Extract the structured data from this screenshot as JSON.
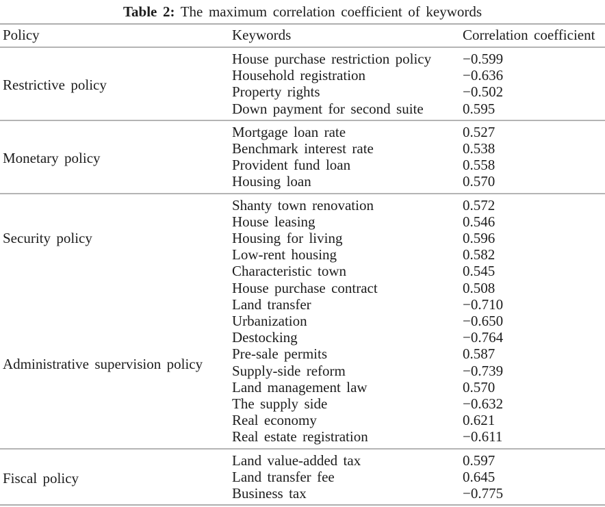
{
  "title": {
    "label": "Table 2:",
    "text": "The maximum correlation coefficient of keywords"
  },
  "columns": {
    "policy": "Policy",
    "keywords": "Keywords",
    "correlation": "Correlation coefficient"
  },
  "table": {
    "sections": [
      {
        "policy": "Restrictive policy",
        "rows": [
          {
            "keyword": "House purchase restriction policy",
            "value": "−0.599"
          },
          {
            "keyword": "Household registration",
            "value": "−0.636"
          },
          {
            "keyword": "Property rights",
            "value": "−0.502"
          },
          {
            "keyword": "Down payment for second suite",
            "value": "0.595"
          }
        ]
      },
      {
        "policy": "Monetary policy",
        "rows": [
          {
            "keyword": "Mortgage loan rate",
            "value": "0.527"
          },
          {
            "keyword": "Benchmark interest rate",
            "value": "0.538"
          },
          {
            "keyword": "Provident fund loan",
            "value": "0.558"
          },
          {
            "keyword": "Housing loan",
            "value": "0.570"
          }
        ]
      },
      {
        "policy": "Security policy",
        "rows": [
          {
            "keyword": "Shanty town renovation",
            "value": "0.572"
          },
          {
            "keyword": "House leasing",
            "value": "0.546"
          },
          {
            "keyword": "Housing for living",
            "value": "0.596"
          },
          {
            "keyword": "Low-rent housing",
            "value": "0.582"
          },
          {
            "keyword": "Characteristic town",
            "value": "0.545"
          },
          {
            "keyword": "House purchase contract",
            "value": "0.508"
          }
        ]
      },
      {
        "policy": "Administrative supervision policy",
        "rows": [
          {
            "keyword": "Land transfer",
            "value": "−0.710"
          },
          {
            "keyword": "Urbanization",
            "value": "−0.650"
          },
          {
            "keyword": "Destocking",
            "value": "−0.764"
          },
          {
            "keyword": "Pre-sale permits",
            "value": "0.587"
          },
          {
            "keyword": "Supply-side reform",
            "value": "−0.739"
          },
          {
            "keyword": "Land management law",
            "value": "0.570"
          },
          {
            "keyword": "The supply side",
            "value": "−0.632"
          },
          {
            "keyword": "Real economy",
            "value": "0.621"
          },
          {
            "keyword": "Real estate registration",
            "value": "−0.611"
          }
        ]
      },
      {
        "policy": "Fiscal policy",
        "rows": [
          {
            "keyword": "Land value-added tax",
            "value": "0.597"
          },
          {
            "keyword": "Land transfer fee",
            "value": "0.645"
          },
          {
            "keyword": "Business tax",
            "value": "−0.775"
          }
        ]
      }
    ]
  }
}
